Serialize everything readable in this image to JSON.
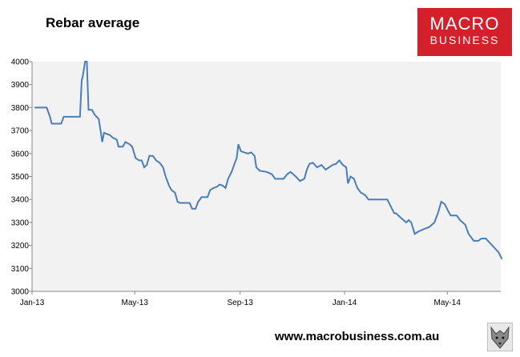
{
  "header": {
    "title": "Rebar average"
  },
  "logo": {
    "line1": "MACRO",
    "line2": "BUSINESS"
  },
  "footer": {
    "url": "www.macrobusiness.com.au"
  },
  "colors": {
    "line": "#4a7ebb",
    "plot_bg": "#f2f2f2",
    "logo_bg": "#d4202a"
  },
  "chart_data": {
    "type": "line",
    "title": "Rebar average",
    "xlabel": "",
    "ylabel": "",
    "ylim": [
      3000,
      4000
    ],
    "yticks": [
      3000,
      3100,
      3200,
      3300,
      3400,
      3500,
      3600,
      3700,
      3800,
      3900,
      4000
    ],
    "xticks": [
      "Jan-13",
      "May-13",
      "Sep-13",
      "Jan-14",
      "May-14"
    ],
    "grid": false,
    "legend": "none",
    "series": [
      {
        "values": [
          [
            "2013-01-04",
            3800
          ],
          [
            "2013-01-18",
            3800
          ],
          [
            "2013-01-22",
            3760
          ],
          [
            "2013-01-24",
            3730
          ],
          [
            "2013-02-04",
            3730
          ],
          [
            "2013-02-07",
            3760
          ],
          [
            "2013-02-22",
            3760
          ],
          [
            "2013-02-26",
            3760
          ],
          [
            "2013-02-28",
            3920
          ],
          [
            "2013-03-01",
            3930
          ],
          [
            "2013-03-04",
            4000
          ],
          [
            "2013-03-06",
            4000
          ],
          [
            "2013-03-08",
            3790
          ],
          [
            "2013-03-12",
            3790
          ],
          [
            "2013-03-15",
            3770
          ],
          [
            "2013-03-20",
            3750
          ],
          [
            "2013-03-22",
            3700
          ],
          [
            "2013-03-24",
            3650
          ],
          [
            "2013-03-26",
            3690
          ],
          [
            "2013-04-02",
            3680
          ],
          [
            "2013-04-05",
            3670
          ],
          [
            "2013-04-10",
            3660
          ],
          [
            "2013-04-12",
            3630
          ],
          [
            "2013-04-17",
            3630
          ],
          [
            "2013-04-20",
            3650
          ],
          [
            "2013-04-25",
            3640
          ],
          [
            "2013-04-28",
            3630
          ],
          [
            "2013-05-02",
            3580
          ],
          [
            "2013-05-06",
            3570
          ],
          [
            "2013-05-09",
            3570
          ],
          [
            "2013-05-12",
            3540
          ],
          [
            "2013-05-15",
            3550
          ],
          [
            "2013-05-18",
            3590
          ],
          [
            "2013-05-22",
            3590
          ],
          [
            "2013-05-26",
            3570
          ],
          [
            "2013-05-30",
            3560
          ],
          [
            "2013-06-03",
            3540
          ],
          [
            "2013-06-06",
            3500
          ],
          [
            "2013-06-10",
            3460
          ],
          [
            "2013-06-13",
            3440
          ],
          [
            "2013-06-17",
            3430
          ],
          [
            "2013-06-20",
            3390
          ],
          [
            "2013-06-23",
            3385
          ],
          [
            "2013-07-04",
            3385
          ],
          [
            "2013-07-07",
            3360
          ],
          [
            "2013-07-11",
            3360
          ],
          [
            "2013-07-14",
            3390
          ],
          [
            "2013-07-18",
            3410
          ],
          [
            "2013-07-25",
            3410
          ],
          [
            "2013-07-28",
            3440
          ],
          [
            "2013-08-01",
            3450
          ],
          [
            "2013-08-05",
            3455
          ],
          [
            "2013-08-08",
            3465
          ],
          [
            "2013-08-12",
            3460
          ],
          [
            "2013-08-15",
            3450
          ],
          [
            "2013-08-18",
            3490
          ],
          [
            "2013-08-22",
            3520
          ],
          [
            "2013-08-26",
            3560
          ],
          [
            "2013-08-28",
            3580
          ],
          [
            "2013-08-30",
            3640
          ],
          [
            "2013-09-02",
            3610
          ],
          [
            "2013-09-06",
            3605
          ],
          [
            "2013-09-10",
            3600
          ],
          [
            "2013-09-14",
            3605
          ],
          [
            "2013-09-18",
            3590
          ],
          [
            "2013-09-20",
            3540
          ],
          [
            "2013-09-24",
            3525
          ],
          [
            "2013-10-02",
            3520
          ],
          [
            "2013-10-08",
            3510
          ],
          [
            "2013-10-12",
            3490
          ],
          [
            "2013-10-22",
            3490
          ],
          [
            "2013-10-26",
            3510
          ],
          [
            "2013-10-30",
            3520
          ],
          [
            "2013-11-05",
            3500
          ],
          [
            "2013-11-10",
            3480
          ],
          [
            "2013-11-15",
            3490
          ],
          [
            "2013-11-18",
            3530
          ],
          [
            "2013-11-21",
            3555
          ],
          [
            "2013-11-25",
            3560
          ],
          [
            "2013-11-30",
            3540
          ],
          [
            "2013-12-05",
            3550
          ],
          [
            "2013-12-10",
            3530
          ],
          [
            "2013-12-14",
            3540
          ],
          [
            "2013-12-18",
            3550
          ],
          [
            "2013-12-22",
            3555
          ],
          [
            "2013-12-26",
            3570
          ],
          [
            "2013-12-30",
            3550
          ],
          [
            "2014-01-03",
            3540
          ],
          [
            "2014-01-05",
            3470
          ],
          [
            "2014-01-08",
            3500
          ],
          [
            "2014-01-12",
            3490
          ],
          [
            "2014-01-16",
            3450
          ],
          [
            "2014-01-20",
            3430
          ],
          [
            "2014-01-25",
            3420
          ],
          [
            "2014-01-29",
            3400
          ],
          [
            "2014-02-05",
            3400
          ],
          [
            "2014-02-20",
            3400
          ],
          [
            "2014-02-24",
            3370
          ],
          [
            "2014-02-28",
            3340
          ],
          [
            "2014-03-02",
            3340
          ],
          [
            "2014-03-08",
            3320
          ],
          [
            "2014-03-14",
            3300
          ],
          [
            "2014-03-17",
            3310
          ],
          [
            "2014-03-20",
            3300
          ],
          [
            "2014-03-24",
            3250
          ],
          [
            "2014-03-28",
            3260
          ],
          [
            "2014-04-03",
            3270
          ],
          [
            "2014-04-10",
            3280
          ],
          [
            "2014-04-16",
            3300
          ],
          [
            "2014-04-20",
            3340
          ],
          [
            "2014-04-24",
            3390
          ],
          [
            "2014-04-28",
            3380
          ],
          [
            "2014-05-02",
            3350
          ],
          [
            "2014-05-05",
            3330
          ],
          [
            "2014-05-12",
            3330
          ],
          [
            "2014-05-16",
            3310
          ],
          [
            "2014-05-22",
            3290
          ],
          [
            "2014-05-26",
            3250
          ],
          [
            "2014-06-01",
            3220
          ],
          [
            "2014-06-06",
            3220
          ],
          [
            "2014-06-10",
            3230
          ],
          [
            "2014-06-15",
            3230
          ],
          [
            "2014-06-20",
            3210
          ],
          [
            "2014-06-25",
            3190
          ],
          [
            "2014-06-30",
            3170
          ],
          [
            "2014-07-04",
            3140
          ]
        ]
      }
    ]
  }
}
